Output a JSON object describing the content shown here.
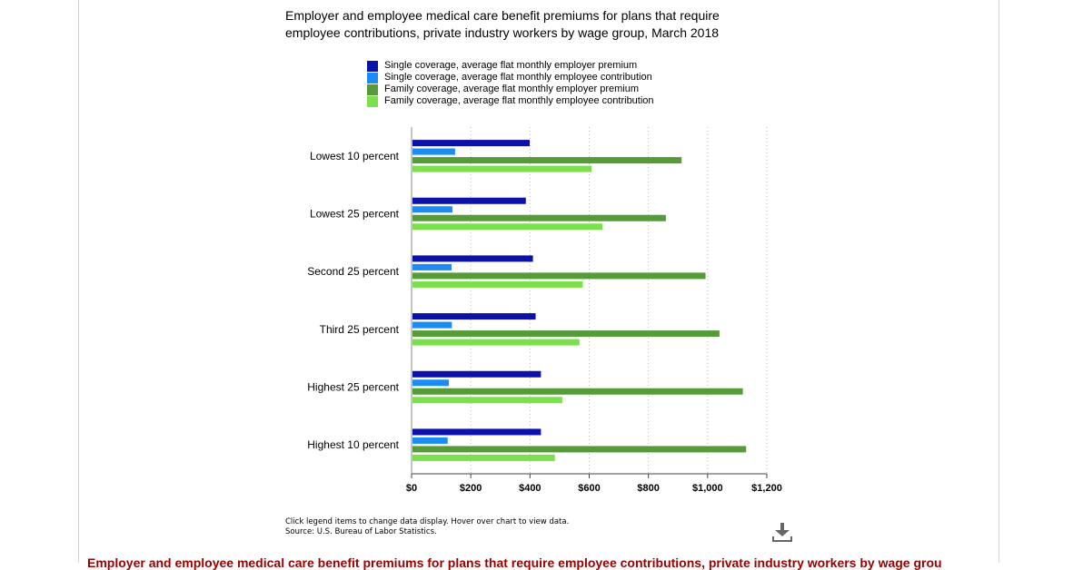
{
  "chart_data": {
    "type": "bar",
    "orientation": "horizontal",
    "title": "Employer and employee medical care benefit premiums for plans that require employee contributions, private industry workers by wage group, March 2018",
    "categories": [
      "Lowest 10 percent",
      "Lowest 25 percent",
      "Second 25 percent",
      "Third 25 percent",
      "Highest 25 percent",
      "Highest 10 percent"
    ],
    "series": [
      {
        "name": "Single coverage, average flat monthly employer premium",
        "color": "#0b11a9",
        "values": [
          399,
          386,
          410,
          419,
          437,
          437
        ]
      },
      {
        "name": "Single coverage, average flat monthly employee contribution",
        "color": "#1a8cf3",
        "values": [
          147,
          138,
          135,
          136,
          126,
          122
        ]
      },
      {
        "name": "Family coverage, average flat monthly employer premium",
        "color": "#559b38",
        "values": [
          912,
          859,
          993,
          1040,
          1119,
          1130
        ]
      },
      {
        "name": "Family coverage, average flat monthly employee contribution",
        "color": "#7ce04e",
        "values": [
          608,
          645,
          578,
          567,
          509,
          484
        ]
      }
    ],
    "xlim": [
      0,
      1200
    ],
    "x_ticks": [
      "$0",
      "$200",
      "$400",
      "$600",
      "$800",
      "$1,000",
      "$1,200"
    ],
    "x_tick_values": [
      0,
      200,
      400,
      600,
      800,
      1000,
      1200
    ],
    "xlabel": "",
    "ylabel": "",
    "grid": "vertical dotted",
    "legend_position": "top"
  },
  "notes": {
    "line1": "Click legend items to change data display. Hover over chart to view data.",
    "line2": "Source: U.S. Bureau of Labor Statistics."
  },
  "download_icon": "download-icon",
  "footer": {
    "title": "Employer and employee medical care benefit premiums for plans that require employee contributions, private industry workers by wage group, March"
  }
}
